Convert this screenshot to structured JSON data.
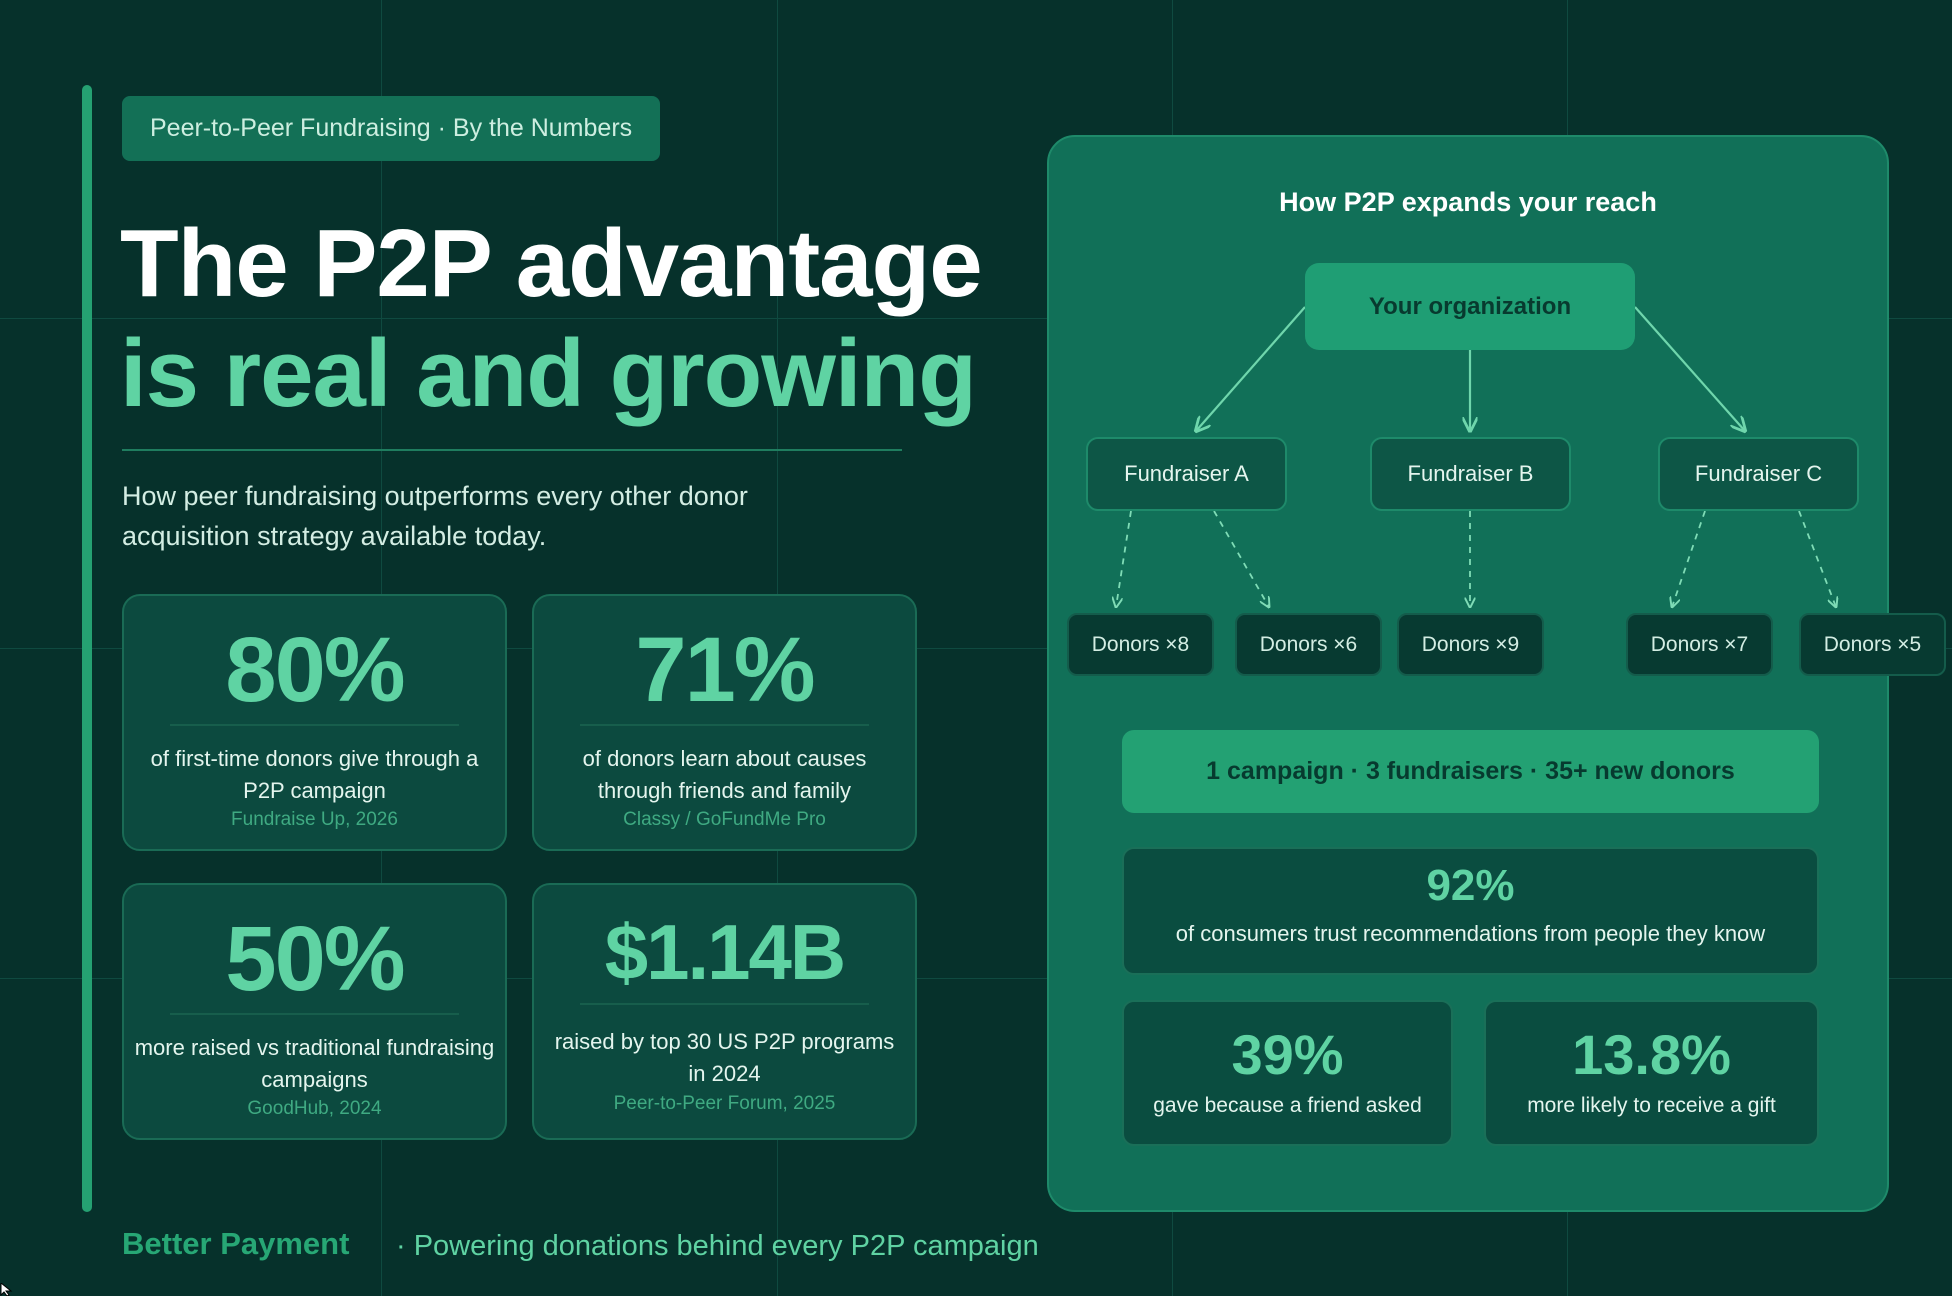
{
  "eyebrow": "Peer-to-Peer Fundraising · By the Numbers",
  "headline": {
    "line1": "The P2P advantage",
    "line2": "is real and growing"
  },
  "subtitle": "How peer fundraising outperforms every other donor acquisition strategy available today.",
  "stats": [
    {
      "value": "80%",
      "desc": "of first-time donors give through a P2P campaign",
      "source": "Fundraise Up, 2026"
    },
    {
      "value": "71%",
      "desc": "of donors learn about causes through friends and family",
      "source": "Classy / GoFundMe Pro"
    },
    {
      "value": "50%",
      "desc": "more raised vs traditional fundraising campaigns",
      "source": "GoodHub, 2024"
    },
    {
      "value": "$1.14B",
      "desc": "raised by top 30 US P2P programs in 2024",
      "source": "Peer-to-Peer Forum, 2025"
    }
  ],
  "footer": {
    "brand": "Better Payment",
    "tagline": "· Powering donations behind every P2P campaign"
  },
  "panel": {
    "title": "How P2P expands your reach",
    "organization": "Your organization",
    "fundraisers": [
      "Fundraiser A",
      "Fundraiser B",
      "Fundraiser C"
    ],
    "donors": [
      "Donors ×8",
      "Donors ×6",
      "Donors ×9",
      "Donors ×7",
      "Donors ×5"
    ],
    "summary": "1 campaign · 3 fundraisers · 35+ new donors",
    "trust": {
      "value": "92%",
      "desc": "of consumers trust recommendations from people they know"
    },
    "mini": [
      {
        "value": "39%",
        "desc": "gave because a friend asked"
      },
      {
        "value": "13.8%",
        "desc": "more likely to receive a gift"
      }
    ]
  },
  "colors": {
    "background": "#06312b",
    "accent": "#5fd3a3",
    "brand": "#27a775",
    "panel": "#117058"
  }
}
